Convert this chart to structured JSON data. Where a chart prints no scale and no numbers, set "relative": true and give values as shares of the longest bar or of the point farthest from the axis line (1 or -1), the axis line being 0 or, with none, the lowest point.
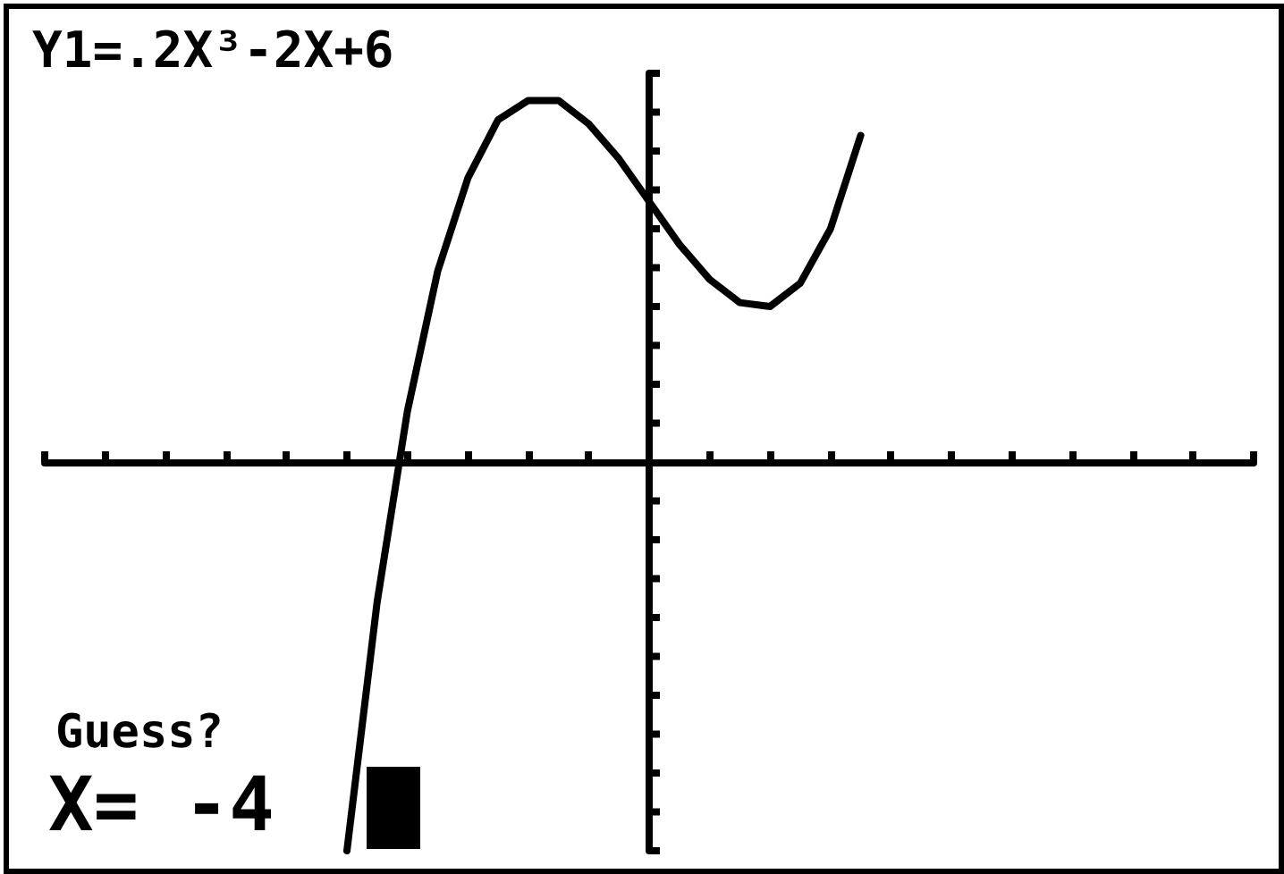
{
  "chart_data": {
    "type": "line",
    "relative": true,
    "title": "Y1=.2X³-2X+6",
    "annotations": [
      "Guess?",
      "X= -4"
    ],
    "categories": [
      null,
      null,
      null,
      null,
      null,
      null,
      null,
      null,
      null,
      null,
      null,
      null,
      null,
      null,
      null,
      null,
      null,
      null,
      null,
      null,
      null,
      null,
      null,
      null,
      null,
      null,
      null,
      null,
      null,
      null,
      null,
      null,
      null,
      null,
      null,
      null,
      null,
      null,
      null,
      null,
      null
    ],
    "series": [
      {
        "color": "#000000",
        "values": [
          null,
          null,
          null,
          null,
          null,
          null,
          null,
          null,
          null,
          null,
          -1,
          -0.36,
          0.13,
          0.49,
          0.73,
          0.88,
          0.93,
          0.93,
          0.87,
          0.78,
          0.67,
          0.56,
          0.47,
          0.41,
          0.4,
          0.46,
          0.6,
          0.84,
          null,
          null,
          null,
          null,
          null,
          null,
          null,
          null,
          null,
          null,
          null,
          null,
          null
        ]
      }
    ],
    "marker": "none",
    "line_style": "solid",
    "grid": false
  }
}
